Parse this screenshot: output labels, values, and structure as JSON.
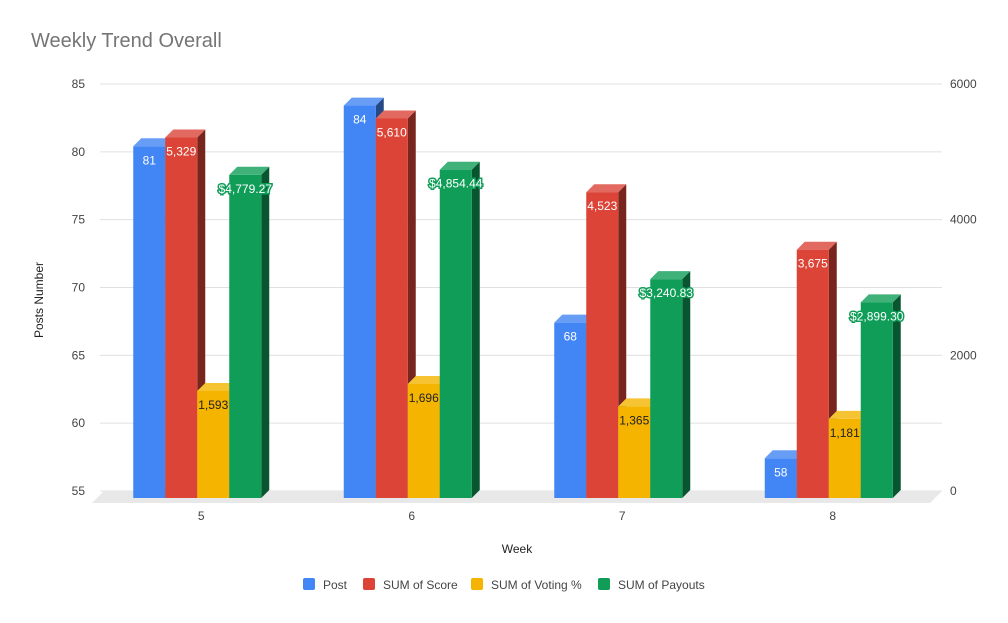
{
  "chart_data": {
    "type": "bar",
    "title": "Weekly Trend Overall",
    "xlabel": "Week",
    "ylabel": "Posts Number",
    "categories": [
      "5",
      "6",
      "7",
      "8"
    ],
    "ylim_left": [
      55,
      85
    ],
    "ylim_right": [
      0,
      6000
    ],
    "left_ticks": [
      85,
      80,
      75,
      70,
      65,
      60,
      55
    ],
    "right_ticks": [
      6000,
      4000,
      2000,
      0
    ],
    "grid": true,
    "legend_position": "bottom",
    "series": [
      {
        "name": "Post",
        "axis": "left",
        "color": "#4285f4",
        "values": [
          81,
          84,
          68,
          58
        ],
        "labels": [
          "81",
          "84",
          "68",
          "58"
        ]
      },
      {
        "name": "SUM of Score",
        "axis": "right",
        "color": "#db4437",
        "values": [
          5329,
          5610,
          4523,
          3675
        ],
        "labels": [
          "5,329",
          "5,610",
          "4,523",
          "3,675"
        ]
      },
      {
        "name": "SUM of Voting %",
        "axis": "right",
        "color": "#f4b400",
        "values": [
          1593,
          1696,
          1365,
          1181
        ],
        "labels": [
          "1,593",
          "1,696",
          "1,365",
          "1,181"
        ]
      },
      {
        "name": "SUM of Payouts",
        "axis": "right",
        "color": "#0f9d58",
        "values": [
          4779.27,
          4854.44,
          3240.83,
          2899.3
        ],
        "labels": [
          "$4,779.27",
          "$4,854.44",
          "$3,240.83",
          "$2,899.30"
        ]
      }
    ]
  }
}
